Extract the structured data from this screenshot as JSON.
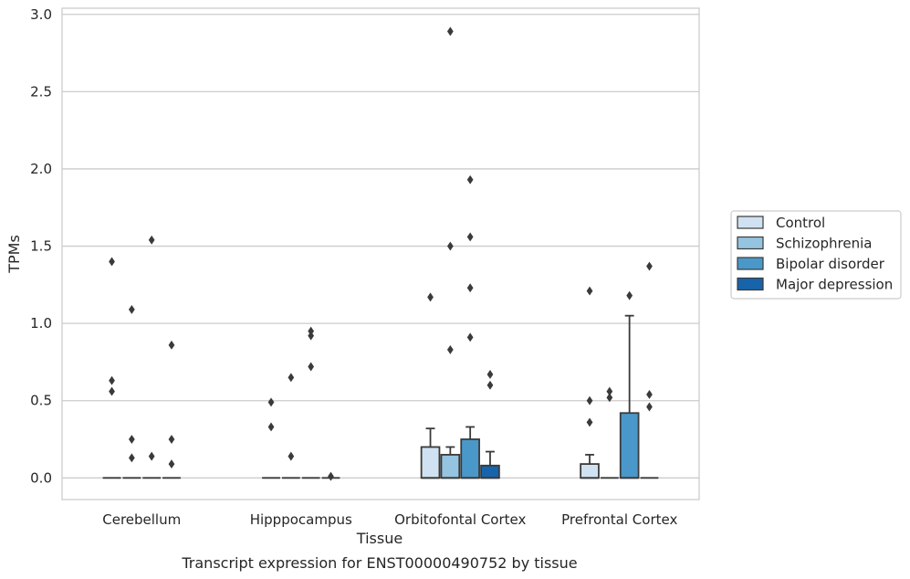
{
  "chart_data": {
    "type": "box",
    "xlabel": "Tissue",
    "ylabel": "TPMs",
    "caption": "Transcript expression for ENST00000490752 by tissue",
    "ylim": [
      -0.14,
      3.04
    ],
    "yticks": [
      "0.0",
      "0.5",
      "1.0",
      "1.5",
      "2.0",
      "2.5",
      "3.0"
    ],
    "grid": "horizontal",
    "legend_position": "right",
    "categories": [
      "Cerebellum",
      "Hipppocampus",
      "Orbitofontal Cortex",
      "Prefrontal Cortex"
    ],
    "series": [
      {
        "name": "Control",
        "color": "#d0e1f2",
        "boxes": [
          {
            "q1": 0,
            "median": 0,
            "q3": 0,
            "whisker_low": 0,
            "whisker_high": 0,
            "outliers": [
              1.4,
              0.63,
              0.56
            ]
          },
          {
            "q1": 0,
            "median": 0,
            "q3": 0,
            "whisker_low": 0,
            "whisker_high": 0,
            "outliers": [
              0.49,
              0.33
            ]
          },
          {
            "q1": 0,
            "median": 0,
            "q3": 0.2,
            "whisker_low": 0,
            "whisker_high": 0.32,
            "outliers": [
              1.17
            ]
          },
          {
            "q1": 0,
            "median": 0,
            "q3": 0.09,
            "whisker_low": 0,
            "whisker_high": 0.15,
            "outliers": [
              1.21,
              0.5,
              0.36
            ]
          }
        ]
      },
      {
        "name": "Schizophrenia",
        "color": "#94c4df",
        "boxes": [
          {
            "q1": 0,
            "median": 0,
            "q3": 0,
            "whisker_low": 0,
            "whisker_high": 0,
            "outliers": [
              1.09,
              0.25,
              0.13
            ]
          },
          {
            "q1": 0,
            "median": 0,
            "q3": 0,
            "whisker_low": 0,
            "whisker_high": 0,
            "outliers": [
              0.65,
              0.14
            ]
          },
          {
            "q1": 0,
            "median": 0,
            "q3": 0.15,
            "whisker_low": 0,
            "whisker_high": 0.2,
            "outliers": [
              2.89,
              1.5,
              0.83
            ]
          },
          {
            "q1": 0,
            "median": 0,
            "q3": 0,
            "whisker_low": 0,
            "whisker_high": 0,
            "outliers": [
              0.56,
              0.52
            ]
          }
        ]
      },
      {
        "name": "Bipolar disorder",
        "color": "#4a98c9",
        "boxes": [
          {
            "q1": 0,
            "median": 0,
            "q3": 0,
            "whisker_low": 0,
            "whisker_high": 0,
            "outliers": [
              1.54,
              0.14
            ]
          },
          {
            "q1": 0,
            "median": 0,
            "q3": 0,
            "whisker_low": 0,
            "whisker_high": 0,
            "outliers": [
              0.95,
              0.92,
              0.72
            ]
          },
          {
            "q1": 0,
            "median": 0,
            "q3": 0.25,
            "whisker_low": 0,
            "whisker_high": 0.33,
            "outliers": [
              1.93,
              1.56,
              1.23,
              0.91
            ]
          },
          {
            "q1": 0,
            "median": 0,
            "q3": 0.42,
            "whisker_low": 0,
            "whisker_high": 1.05,
            "outliers": [
              1.18
            ]
          }
        ]
      },
      {
        "name": "Major depression",
        "color": "#1764ab",
        "boxes": [
          {
            "q1": 0,
            "median": 0,
            "q3": 0,
            "whisker_low": 0,
            "whisker_high": 0,
            "outliers": [
              0.86,
              0.25,
              0.09
            ]
          },
          {
            "q1": 0,
            "median": 0,
            "q3": 0,
            "whisker_low": 0,
            "whisker_high": 0,
            "outliers": [
              0.01
            ]
          },
          {
            "q1": 0,
            "median": 0,
            "q3": 0.08,
            "whisker_low": 0,
            "whisker_high": 0.17,
            "outliers": [
              0.67,
              0.6
            ]
          },
          {
            "q1": 0,
            "median": 0,
            "q3": 0,
            "whisker_low": 0,
            "whisker_high": 0,
            "outliers": [
              1.37,
              0.54,
              0.46
            ]
          }
        ]
      }
    ]
  }
}
